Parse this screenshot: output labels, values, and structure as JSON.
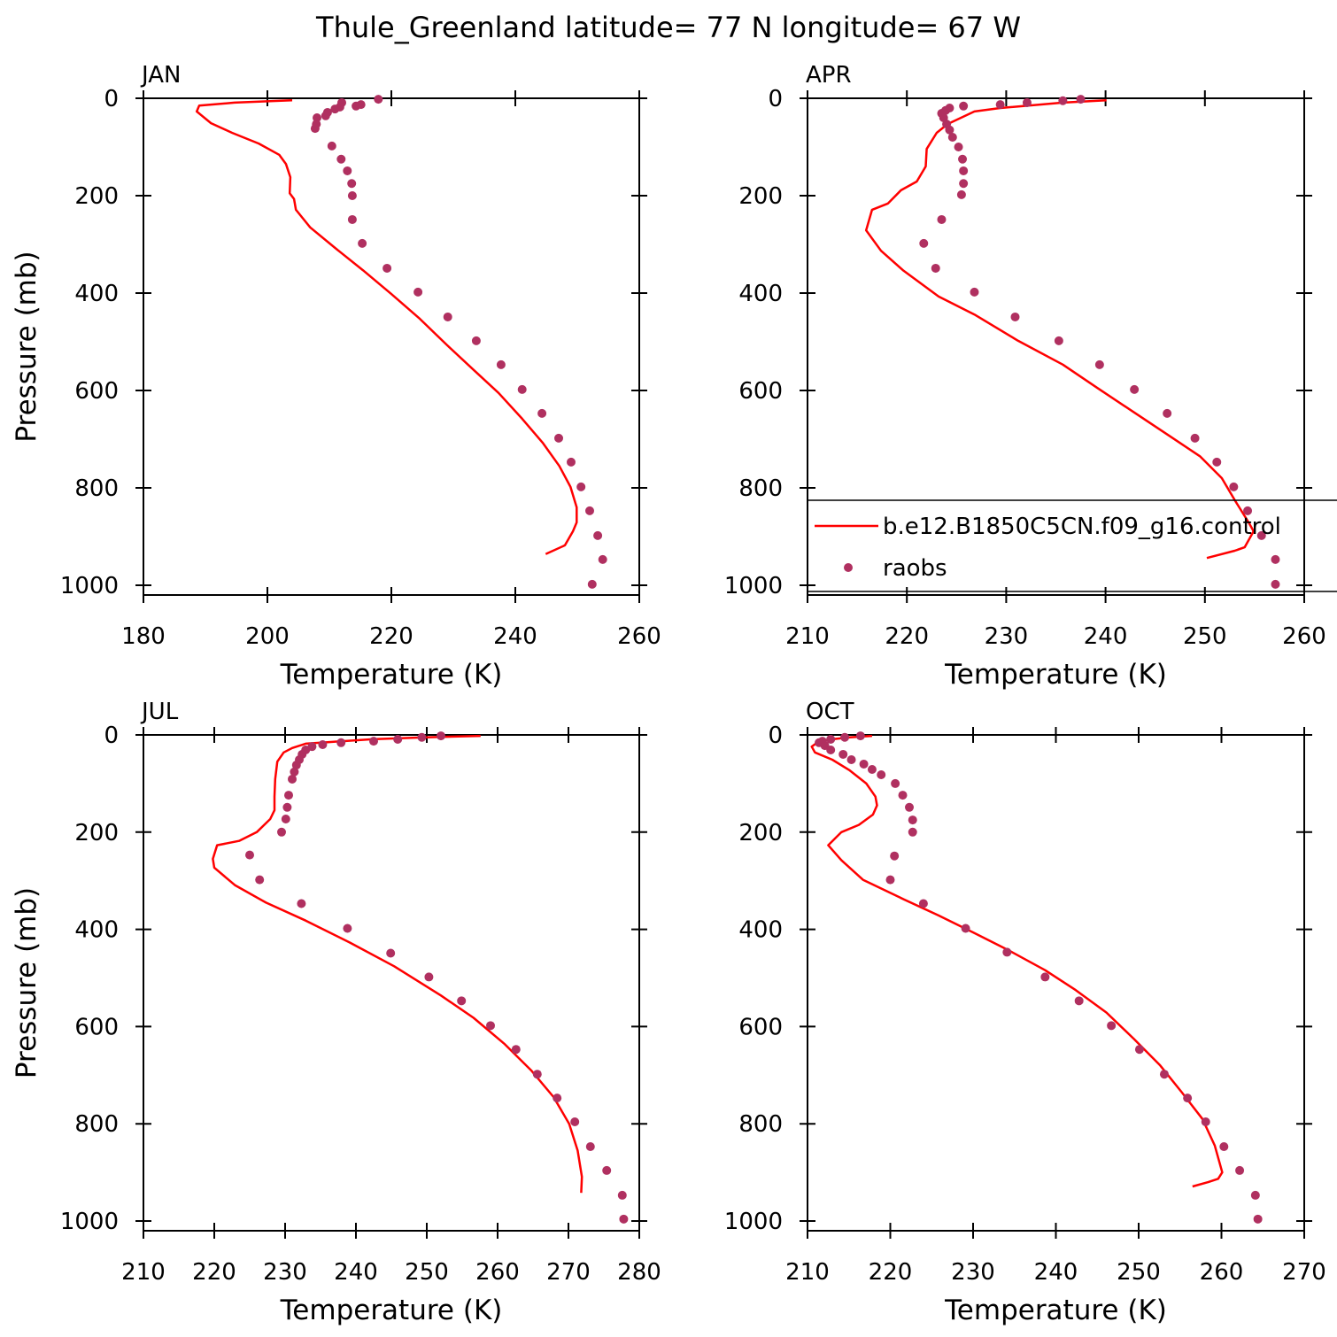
{
  "title": "Thule_Greenland  latitude= 77 N longitude= 67 W",
  "chart_data": [
    {
      "type": "line-scatter",
      "title": "JAN",
      "x_label": "Temperature (K)",
      "y_label": "Pressure (mb)",
      "xlim": [
        180,
        260
      ],
      "xticks": [
        180,
        200,
        220,
        240,
        260
      ],
      "ylim": [
        1020,
        0
      ],
      "yticks": [
        0,
        200,
        400,
        600,
        800,
        1000
      ],
      "series": [
        {
          "kind": "line",
          "color": "#ff0000",
          "x": [
            204,
            194.7,
            189,
            188.6,
            190.9,
            194.3,
            198.6,
            201.9,
            203,
            203.7,
            203.6,
            204.3,
            204.6,
            206.9,
            210.9,
            215.4,
            220,
            224.6,
            229,
            233.3,
            237.3,
            241.1,
            244.4,
            247.1,
            248.9,
            249.9,
            249.9,
            249.3,
            248,
            244.9
          ],
          "y": [
            4,
            9,
            15,
            27,
            51,
            71,
            93,
            116,
            135,
            162,
            195,
            207,
            229,
            265,
            307,
            353,
            402,
            453,
            507,
            558,
            605,
            658,
            707,
            755,
            798,
            840,
            871,
            889,
            918,
            936
          ]
        },
        {
          "kind": "scatter",
          "color": "#b03060",
          "x": [
            217.9,
            215.1,
            214.3,
            212,
            211.7,
            210.9,
            209.7,
            209.4,
            208,
            207.9,
            207.7,
            210.4,
            211.9,
            212.9,
            213.6,
            213.7,
            213.7,
            215.3,
            219.3,
            224.3,
            229.1,
            233.7,
            237.7,
            241.1,
            244.3,
            247,
            249,
            250.6,
            252,
            253.3,
            254.1,
            252.4
          ],
          "y": [
            2,
            13,
            16,
            9,
            18,
            22,
            29,
            36,
            40,
            53,
            62,
            98,
            125,
            149,
            175,
            200,
            249,
            298,
            349,
            398,
            449,
            498,
            547,
            598,
            647,
            698,
            747,
            798,
            847,
            898,
            947,
            998
          ]
        }
      ]
    },
    {
      "type": "line-scatter",
      "title": "APR",
      "x_label": "Temperature (K)",
      "legend": "bottom",
      "xlim": [
        210,
        260
      ],
      "xticks": [
        210,
        220,
        230,
        240,
        250,
        260
      ],
      "ylim": [
        1020,
        0
      ],
      "yticks": [
        0,
        200,
        400,
        600,
        800,
        1000
      ],
      "series": [
        {
          "kind": "line",
          "name": "b.e12.B1850C5CN.f09_g16.control",
          "color": "#ff0000",
          "x": [
            240.1,
            235.7,
            229.4,
            226.8,
            224.1,
            223,
            222,
            221.9,
            221,
            219.4,
            218.1,
            216.5,
            215.9,
            217.4,
            219.6,
            223.2,
            226.8,
            231.2,
            235.7,
            239.2,
            242.8,
            246.4,
            249.5,
            251.7,
            253,
            254.4,
            254.9,
            254,
            253,
            250.2
          ],
          "y": [
            4,
            9,
            20,
            27,
            53,
            71,
            104,
            140,
            171,
            189,
            216,
            229,
            271,
            313,
            353,
            407,
            444,
            498,
            547,
            595,
            644,
            693,
            735,
            780,
            825,
            871,
            889,
            922,
            929,
            944
          ]
        },
        {
          "kind": "scatter",
          "name": "raobs",
          "color": "#b03060",
          "x": [
            237.5,
            235.7,
            232.1,
            229.4,
            225.7,
            224.3,
            223.9,
            223.5,
            223.7,
            224,
            224.3,
            224.6,
            225.2,
            225.6,
            225.7,
            225.7,
            225.5,
            223.5,
            221.7,
            222.9,
            226.8,
            230.9,
            235.3,
            239.4,
            242.9,
            246.2,
            249,
            251.2,
            252.9,
            254.3,
            255.7,
            257.1,
            257.1
          ],
          "y": [
            2,
            5,
            9,
            13,
            16,
            20,
            25,
            31,
            40,
            53,
            65,
            80,
            100,
            125,
            149,
            175,
            198,
            249,
            298,
            349,
            398,
            449,
            498,
            547,
            598,
            647,
            698,
            747,
            798,
            847,
            898,
            947,
            998
          ]
        }
      ]
    },
    {
      "type": "line-scatter",
      "title": "JUL",
      "x_label": "Temperature (K)",
      "y_label": "Pressure (mb)",
      "xlim": [
        210,
        280
      ],
      "xticks": [
        210,
        220,
        230,
        240,
        250,
        260,
        270,
        280
      ],
      "ylim": [
        1020,
        0
      ],
      "yticks": [
        0,
        200,
        400,
        600,
        800,
        1000
      ],
      "series": [
        {
          "kind": "line",
          "color": "#ff0000",
          "x": [
            257.6,
            249.8,
            242.3,
            236,
            232.9,
            231,
            229.8,
            228.9,
            228.6,
            228.5,
            228.5,
            227.9,
            226,
            223.5,
            220.4,
            219.8,
            220,
            222.9,
            227.3,
            232.9,
            239.1,
            245.4,
            252,
            256.6,
            261,
            264.8,
            267.9,
            270.1,
            271.3,
            271.9,
            271.8
          ],
          "y": [
            2,
            5,
            9,
            15,
            18,
            27,
            36,
            55,
            91,
            127,
            155,
            173,
            200,
            218,
            227,
            255,
            273,
            309,
            345,
            382,
            427,
            476,
            536,
            582,
            636,
            691,
            745,
            800,
            855,
            909,
            942
          ]
        },
        {
          "kind": "scatter",
          "color": "#b03060",
          "x": [
            252,
            249.3,
            245.9,
            242.5,
            237.9,
            235.3,
            233.8,
            232.9,
            232.4,
            232,
            231.6,
            231.3,
            231,
            230.5,
            230.3,
            230.1,
            229.5,
            225,
            226.4,
            232.3,
            238.8,
            244.9,
            250.3,
            254.9,
            259,
            262.6,
            265.6,
            268.4,
            270.9,
            273.1,
            275.4,
            277.6,
            277.8
          ],
          "y": [
            2,
            5,
            9,
            13,
            16,
            20,
            24,
            31,
            40,
            51,
            62,
            76,
            91,
            124,
            149,
            173,
            200,
            247,
            298,
            347,
            398,
            449,
            498,
            547,
            598,
            647,
            698,
            747,
            796,
            847,
            896,
            947,
            996
          ]
        }
      ]
    },
    {
      "type": "line-scatter",
      "title": "OCT",
      "x_label": "Temperature (K)",
      "xlim": [
        210,
        270
      ],
      "xticks": [
        210,
        220,
        230,
        240,
        250,
        260,
        270
      ],
      "ylim": [
        1020,
        0
      ],
      "yticks": [
        0,
        200,
        400,
        600,
        800,
        1000
      ],
      "series": [
        {
          "kind": "line",
          "color": "#ff0000",
          "x": [
            217.8,
            215.1,
            213,
            211.4,
            210.5,
            210.9,
            213,
            215.1,
            217.1,
            218.2,
            218.4,
            217.9,
            216.2,
            214.1,
            212.5,
            214.1,
            216.7,
            221.6,
            225.8,
            230.1,
            234.4,
            238.7,
            242.4,
            246.1,
            249.4,
            252.6,
            255.2,
            257.7,
            259.2,
            260.1,
            259.6,
            258.4,
            256.5
          ],
          "y": [
            2,
            5,
            9,
            13,
            24,
            36,
            51,
            73,
            100,
            127,
            145,
            164,
            185,
            200,
            227,
            258,
            298,
            338,
            371,
            407,
            444,
            484,
            525,
            571,
            625,
            680,
            735,
            790,
            845,
            900,
            913,
            920,
            929
          ]
        },
        {
          "kind": "scatter",
          "color": "#b03060",
          "x": [
            216.4,
            214.5,
            212.8,
            211.8,
            211.4,
            212.1,
            212.8,
            214.3,
            215.3,
            216.8,
            217.8,
            218.9,
            220.6,
            221.5,
            222.3,
            222.7,
            222.7,
            220.5,
            220,
            224,
            229.1,
            234.1,
            238.7,
            242.8,
            246.7,
            250.1,
            253.1,
            255.9,
            258.1,
            260.3,
            262.2,
            264.1,
            264.4
          ],
          "y": [
            2,
            5,
            9,
            13,
            16,
            22,
            31,
            40,
            51,
            60,
            71,
            82,
            100,
            124,
            149,
            175,
            200,
            249,
            298,
            347,
            398,
            447,
            498,
            547,
            598,
            647,
            698,
            747,
            796,
            847,
            896,
            947,
            996
          ]
        }
      ]
    }
  ]
}
